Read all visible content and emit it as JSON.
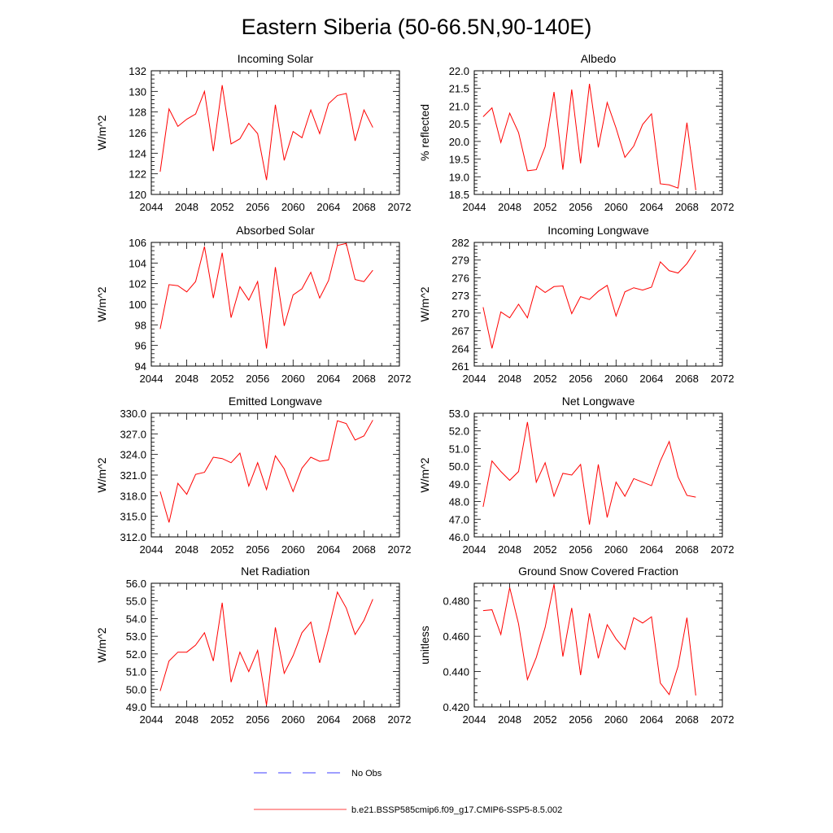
{
  "title": "Eastern Siberia (50-66.5N,90-140E)",
  "legend": [
    {
      "label": "No Obs",
      "color": "#0000ff",
      "style": "dashed"
    },
    {
      "label": "b.e21.BSSP585cmip6.f09_g17.CMIP6-SSP5-8.5.002",
      "color": "#ff0000",
      "style": "solid"
    }
  ],
  "chart_data": [
    {
      "type": "line",
      "title": "Incoming Solar",
      "ylabel": "W/m^2",
      "xlim": [
        2044,
        2072
      ],
      "ylim": [
        120,
        132
      ],
      "yticks": [
        120,
        122,
        124,
        126,
        128,
        130,
        132
      ],
      "ytick_labels": [
        "120",
        "122",
        "124",
        "126",
        "128",
        "130",
        "132"
      ],
      "x": [
        2045,
        2046,
        2047,
        2048,
        2049,
        2050,
        2051,
        2052,
        2053,
        2054,
        2055,
        2056,
        2057,
        2058,
        2059,
        2060,
        2061,
        2062,
        2063,
        2064,
        2065,
        2066,
        2067,
        2068,
        2069
      ],
      "series": [
        {
          "values": [
            122.2,
            128.3,
            126.6,
            127.3,
            127.8,
            130.0,
            124.2,
            130.6,
            124.9,
            125.4,
            126.9,
            125.9,
            121.4,
            128.7,
            123.3,
            126.1,
            125.5,
            128.2,
            125.9,
            128.8,
            129.6,
            129.8,
            125.2,
            128.2,
            126.5
          ]
        }
      ]
    },
    {
      "type": "line",
      "title": "Albedo",
      "ylabel": "% reflected",
      "xlim": [
        2044,
        2072
      ],
      "ylim": [
        18.5,
        22.0
      ],
      "yticks": [
        18.5,
        19.0,
        19.5,
        20.0,
        20.5,
        21.0,
        21.5,
        22.0
      ],
      "ytick_labels": [
        "18.5",
        "19.0",
        "19.5",
        "20.0",
        "20.5",
        "21.0",
        "21.5",
        "22.0"
      ],
      "x": [
        2045,
        2046,
        2047,
        2048,
        2049,
        2050,
        2051,
        2052,
        2053,
        2054,
        2055,
        2056,
        2057,
        2058,
        2059,
        2060,
        2061,
        2062,
        2063,
        2064,
        2065,
        2066,
        2067,
        2068,
        2069
      ],
      "series": [
        {
          "values": [
            20.7,
            20.95,
            19.97,
            20.8,
            20.25,
            19.17,
            19.2,
            19.85,
            21.4,
            19.2,
            21.47,
            19.38,
            21.63,
            19.83,
            21.1,
            20.38,
            19.55,
            19.87,
            20.48,
            20.78,
            18.8,
            18.77,
            18.68,
            20.53,
            18.62
          ]
        }
      ]
    },
    {
      "type": "line",
      "title": "Absorbed Solar",
      "ylabel": "W/m^2",
      "xlim": [
        2044,
        2072
      ],
      "ylim": [
        94,
        106
      ],
      "yticks": [
        94,
        96,
        98,
        100,
        102,
        104,
        106
      ],
      "ytick_labels": [
        "94",
        "96",
        "98",
        "100",
        "102",
        "104",
        "106"
      ],
      "x": [
        2045,
        2046,
        2047,
        2048,
        2049,
        2050,
        2051,
        2052,
        2053,
        2054,
        2055,
        2056,
        2057,
        2058,
        2059,
        2060,
        2061,
        2062,
        2063,
        2064,
        2065,
        2066,
        2067,
        2068,
        2069
      ],
      "series": [
        {
          "values": [
            97.6,
            101.9,
            101.8,
            101.2,
            102.2,
            105.6,
            100.6,
            105.0,
            98.7,
            101.7,
            100.4,
            102.2,
            95.7,
            103.6,
            97.9,
            100.9,
            101.5,
            103.1,
            100.6,
            102.3,
            105.7,
            105.9,
            102.4,
            102.2,
            103.3
          ]
        }
      ]
    },
    {
      "type": "line",
      "title": "Incoming Longwave",
      "ylabel": "W/m^2",
      "xlim": [
        2044,
        2072
      ],
      "ylim": [
        261,
        282
      ],
      "yticks": [
        261,
        264,
        267,
        270,
        273,
        276,
        279,
        282
      ],
      "ytick_labels": [
        "261",
        "264",
        "267",
        "270",
        "273",
        "276",
        "279",
        "282"
      ],
      "x": [
        2045,
        2046,
        2047,
        2048,
        2049,
        2050,
        2051,
        2052,
        2053,
        2054,
        2055,
        2056,
        2057,
        2058,
        2059,
        2060,
        2061,
        2062,
        2063,
        2064,
        2065,
        2066,
        2067,
        2068,
        2069
      ],
      "series": [
        {
          "values": [
            271.0,
            264.0,
            270.2,
            269.2,
            271.5,
            269.2,
            274.6,
            273.5,
            274.5,
            274.6,
            269.9,
            272.8,
            272.3,
            273.7,
            274.7,
            269.5,
            273.6,
            274.3,
            273.9,
            274.4,
            278.7,
            277.2,
            276.8,
            278.4,
            280.7
          ]
        }
      ]
    },
    {
      "type": "line",
      "title": "Emitted Longwave",
      "ylabel": "W/m^2",
      "xlim": [
        2044,
        2072
      ],
      "ylim": [
        312,
        330
      ],
      "yticks": [
        312,
        315,
        318,
        321,
        324,
        327,
        330
      ],
      "ytick_labels": [
        "312.0",
        "315.0",
        "318.0",
        "321.0",
        "324.0",
        "327.0",
        "330.0"
      ],
      "x": [
        2045,
        2046,
        2047,
        2048,
        2049,
        2050,
        2051,
        2052,
        2053,
        2054,
        2055,
        2056,
        2057,
        2058,
        2059,
        2060,
        2061,
        2062,
        2063,
        2064,
        2065,
        2066,
        2067,
        2068,
        2069
      ],
      "series": [
        {
          "values": [
            318.6,
            314.1,
            319.8,
            318.2,
            321.1,
            321.4,
            323.6,
            323.4,
            322.8,
            324.2,
            319.4,
            322.8,
            318.9,
            323.8,
            321.9,
            318.6,
            322.0,
            323.6,
            323.0,
            323.2,
            328.9,
            328.5,
            326.1,
            326.7,
            329.0
          ]
        }
      ]
    },
    {
      "type": "line",
      "title": "Net Longwave",
      "ylabel": "W/m^2",
      "xlim": [
        2044,
        2072
      ],
      "ylim": [
        46,
        53
      ],
      "yticks": [
        46,
        47,
        48,
        49,
        50,
        51,
        52,
        53
      ],
      "ytick_labels": [
        "46.0",
        "47.0",
        "48.0",
        "49.0",
        "50.0",
        "51.0",
        "52.0",
        "53.0"
      ],
      "x": [
        2045,
        2046,
        2047,
        2048,
        2049,
        2050,
        2051,
        2052,
        2053,
        2054,
        2055,
        2056,
        2057,
        2058,
        2059,
        2060,
        2061,
        2062,
        2063,
        2064,
        2065,
        2066,
        2067,
        2068,
        2069
      ],
      "series": [
        {
          "values": [
            47.7,
            50.3,
            49.7,
            49.2,
            49.7,
            52.5,
            49.1,
            50.2,
            48.3,
            49.6,
            49.5,
            50.1,
            46.7,
            50.1,
            47.1,
            49.1,
            48.3,
            49.3,
            49.1,
            48.9,
            50.3,
            51.4,
            49.4,
            48.35,
            48.25
          ]
        }
      ]
    },
    {
      "type": "line",
      "title": "Net Radiation",
      "ylabel": "W/m^2",
      "xlim": [
        2044,
        2072
      ],
      "ylim": [
        49,
        56
      ],
      "yticks": [
        49,
        50,
        51,
        52,
        53,
        54,
        55,
        56
      ],
      "ytick_labels": [
        "49.0",
        "50.0",
        "51.0",
        "52.0",
        "53.0",
        "54.0",
        "55.0",
        "56.0"
      ],
      "x": [
        2045,
        2046,
        2047,
        2048,
        2049,
        2050,
        2051,
        2052,
        2053,
        2054,
        2055,
        2056,
        2057,
        2058,
        2059,
        2060,
        2061,
        2062,
        2063,
        2064,
        2065,
        2066,
        2067,
        2068,
        2069
      ],
      "series": [
        {
          "values": [
            49.9,
            51.6,
            52.1,
            52.1,
            52.5,
            53.2,
            51.6,
            54.9,
            50.4,
            52.1,
            51.0,
            52.2,
            49.1,
            53.5,
            50.9,
            51.9,
            53.2,
            53.8,
            51.5,
            53.4,
            55.5,
            54.6,
            53.1,
            53.9,
            55.1
          ]
        }
      ]
    },
    {
      "type": "line",
      "title": "Ground Snow Covered Fraction",
      "ylabel": "unitless",
      "xlim": [
        2044,
        2072
      ],
      "ylim": [
        0.42,
        0.49
      ],
      "yticks": [
        0.42,
        0.44,
        0.46,
        0.48
      ],
      "ytick_labels": [
        "0.420",
        "0.440",
        "0.460",
        "0.480"
      ],
      "x": [
        2045,
        2046,
        2047,
        2048,
        2049,
        2050,
        2051,
        2052,
        2053,
        2054,
        2055,
        2056,
        2057,
        2058,
        2059,
        2060,
        2061,
        2062,
        2063,
        2064,
        2065,
        2066,
        2067,
        2068,
        2069
      ],
      "series": [
        {
          "values": [
            0.4745,
            0.475,
            0.461,
            0.4875,
            0.467,
            0.4355,
            0.448,
            0.465,
            0.4895,
            0.4485,
            0.476,
            0.438,
            0.473,
            0.4475,
            0.4665,
            0.4585,
            0.4525,
            0.4705,
            0.4675,
            0.471,
            0.4335,
            0.427,
            0.443,
            0.4705,
            0.4265
          ]
        }
      ]
    }
  ]
}
